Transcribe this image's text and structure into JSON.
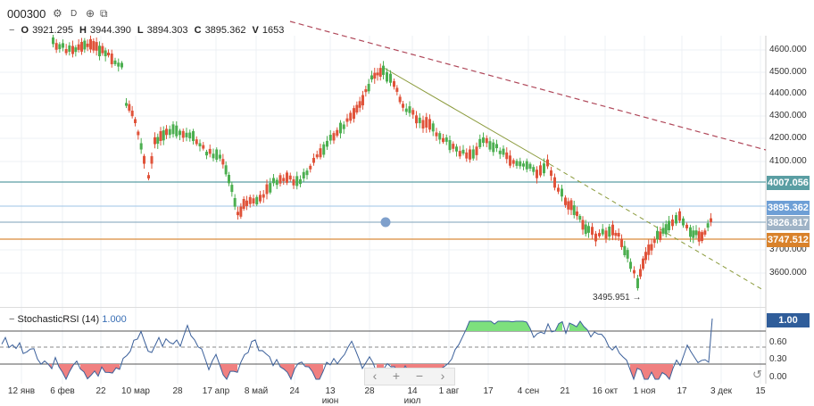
{
  "header": {
    "symbol": "000300",
    "gear_icon": "gear-icon",
    "interval": "D",
    "compare_icon": "compare-icon"
  },
  "ohlc": {
    "o_label": "O",
    "o_value": "3921.295",
    "h_label": "H",
    "h_value": "3944.390",
    "l_label": "L",
    "l_value": "3894.303",
    "c_label": "C",
    "c_value": "3895.362",
    "v_label": "V",
    "v_value": "1653"
  },
  "price_axis": {
    "labels": [
      "4600.000",
      "4500.000",
      "4400.000",
      "4300.000",
      "4200.000",
      "4100.000",
      "3700.000",
      "3600.000"
    ]
  },
  "price_tags": {
    "level_1": "4007.056",
    "last": "3895.362",
    "level_2": "3826.817",
    "level_3": "3747.512"
  },
  "annotation": {
    "low_label": "3495.951"
  },
  "rsi": {
    "title": "StochasticRSI (14)",
    "value": "1.000",
    "tag": "1.00",
    "axis": [
      "0.60",
      "0.30",
      "0.00"
    ]
  },
  "time_axis": {
    "labels": [
      "12 янв",
      "6 фев",
      "22",
      "10 мар",
      "28",
      "17 апр",
      "8 май",
      "24",
      "13 июн",
      "28",
      "14 июл",
      "1 авг",
      "17",
      "4 сен",
      "21",
      "16 окт",
      "1 ноя",
      "17",
      "3 дек",
      "15"
    ]
  },
  "nav": {
    "left": "‹",
    "zoom_in": "+",
    "zoom_out": "−",
    "right": "›"
  },
  "colors": {
    "up": "#4caf50",
    "down": "#e0533a",
    "level_teal": "#5a9ea3",
    "level_blue": "#8fb6de",
    "level_gray": "#7b9fb8",
    "level_orange": "#d98b3a",
    "tag_last": "#6e9fd6",
    "tag_gray": "#9fb3c6",
    "tag_orange": "#d9822b",
    "tag_rsi": "#2f5d9a"
  }
}
